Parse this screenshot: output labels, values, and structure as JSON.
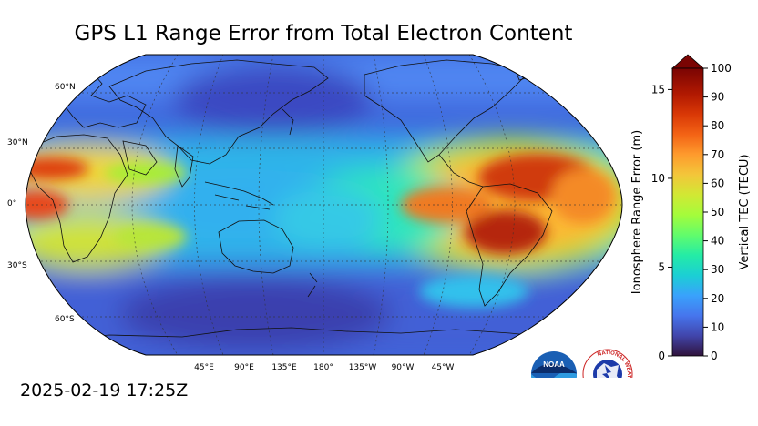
{
  "title": "GPS L1 Range Error from Total Electron Content",
  "timestamp": "2025-02-19 17:25Z",
  "map": {
    "projection": "robinson",
    "lat_labels": [
      "60°N",
      "30°N",
      "0°",
      "30°S",
      "60°S"
    ],
    "lon_labels": [
      "45°E",
      "90°E",
      "135°E",
      "180°",
      "135°W",
      "90°W",
      "45°W"
    ]
  },
  "colorbar": {
    "left_axis_label": "Ionosphere Range Error (m)",
    "left_ticks": [
      "0",
      "5",
      "10",
      "15"
    ],
    "right_axis_label": "Vertical TEC (TECU)",
    "right_ticks": [
      "0",
      "10",
      "20",
      "30",
      "40",
      "50",
      "60",
      "70",
      "80",
      "90",
      "100"
    ],
    "extend": "max",
    "colormap": "turbo"
  },
  "logos": [
    {
      "name": "noaa-logo",
      "text": "NOAA"
    },
    {
      "name": "nws-logo",
      "text": "NATIONAL WEATHER SERVICE"
    }
  ]
}
